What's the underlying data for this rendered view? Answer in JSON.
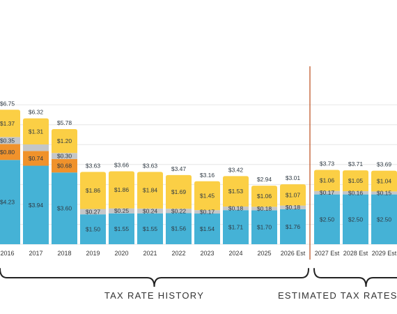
{
  "chart_data": {
    "type": "bar",
    "stacked": true,
    "categories": [
      "2016",
      "2017",
      "2018",
      "2019",
      "2020",
      "2021",
      "2022",
      "2023",
      "2024",
      "2025",
      "2026 Est",
      "2027 Est",
      "2028 Est",
      "2029 Est"
    ],
    "series": [
      {
        "key": "blue",
        "color": "#45b2d6",
        "values": [
          4.23,
          3.94,
          3.6,
          1.5,
          1.55,
          1.55,
          1.56,
          1.54,
          1.71,
          1.7,
          1.76,
          2.5,
          2.5,
          2.5
        ],
        "labels": [
          "$4.23",
          "$3.94",
          "$3.60",
          "$1.50",
          "$1.55",
          "$1.55",
          "$1.56",
          "$1.54",
          "$1.71",
          "$1.70",
          "$1.76",
          "$2.50",
          "$2.50",
          "$2.50"
        ]
      },
      {
        "key": "orange",
        "color": "#f0922b",
        "values": [
          0.8,
          0.74,
          0.68,
          0,
          0,
          0,
          0,
          0,
          0,
          0,
          0,
          0,
          0,
          0
        ],
        "labels": [
          "$0.80",
          "$0.74",
          "$0.68",
          "",
          "",
          "",
          "",
          "",
          "",
          "",
          "",
          "",
          "",
          ""
        ]
      },
      {
        "key": "gray",
        "color": "#c4c6c8",
        "values": [
          0.35,
          0.33,
          0.3,
          0.27,
          0.25,
          0.24,
          0.22,
          0.17,
          0.18,
          0.18,
          0.18,
          0.17,
          0.16,
          0.15
        ],
        "labels": [
          "$0.35",
          "",
          "$0.30",
          "$0.27",
          "$0.25",
          "$0.24",
          "$0.22",
          "$0.17",
          "$0.18",
          "$0.18",
          "$0.18",
          "$0.17",
          "$0.16",
          "$0.15"
        ]
      },
      {
        "key": "yellow",
        "color": "#fbcf45",
        "values": [
          1.37,
          1.31,
          1.2,
          1.86,
          1.86,
          1.84,
          1.69,
          1.45,
          1.53,
          1.06,
          1.07,
          1.06,
          1.05,
          1.04
        ],
        "labels": [
          "$1.37",
          "$1.31",
          "$1.20",
          "$1.86",
          "$1.86",
          "$1.84",
          "$1.69",
          "$1.45",
          "$1.53",
          "$1.06",
          "$1.07",
          "$1.06",
          "$1.05",
          "$1.04"
        ]
      }
    ],
    "totals": [
      "$6.75",
      "$6.32",
      "$5.78",
      "$3.63",
      "$3.66",
      "$3.63",
      "$3.47",
      "$3.16",
      "$3.42",
      "$2.94",
      "$3.01",
      "$3.73",
      "$3.71",
      "$3.69"
    ],
    "y_range": [
      0,
      7
    ],
    "grid": true,
    "divider_after": "2026 Est",
    "divider_color": "#c0572a",
    "sections": [
      {
        "label": "TAX RATE HISTORY",
        "from": "2016",
        "to": "2026 Est"
      },
      {
        "label": "ESTIMATED TAX RATES FOR",
        "from": "2027 Est",
        "to": "2029 Est"
      }
    ]
  }
}
